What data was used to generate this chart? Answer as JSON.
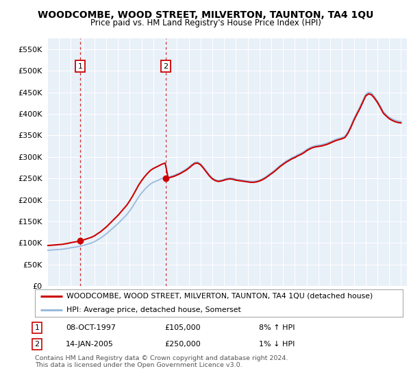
{
  "title": "WOODCOMBE, WOOD STREET, MILVERTON, TAUNTON, TA4 1QU",
  "subtitle": "Price paid vs. HM Land Registry's House Price Index (HPI)",
  "sale1_date": "08-OCT-1997",
  "sale1_price": 105000,
  "sale1_hpi": "8% ↑ HPI",
  "sale2_date": "14-JAN-2005",
  "sale2_price": 250000,
  "sale2_hpi": "1% ↓ HPI",
  "legend_line1": "WOODCOMBE, WOOD STREET, MILVERTON, TAUNTON, TA4 1QU (detached house)",
  "legend_line2": "HPI: Average price, detached house, Somerset",
  "footer": "Contains HM Land Registry data © Crown copyright and database right 2024.\nThis data is licensed under the Open Government Licence v3.0.",
  "sale_color": "#cc0000",
  "hpi_color": "#99bbdd",
  "plot_bg": "#e8f0f8",
  "ylim": [
    0,
    575000
  ],
  "yticks": [
    0,
    50000,
    100000,
    150000,
    200000,
    250000,
    300000,
    350000,
    400000,
    450000,
    500000,
    550000
  ],
  "sale1_x": 1997.78,
  "sale2_x": 2005.04,
  "xmin": 1995.0,
  "xmax": 2025.5,
  "hpi_years": [
    1995.0,
    1995.25,
    1995.5,
    1995.75,
    1996.0,
    1996.25,
    1996.5,
    1996.75,
    1997.0,
    1997.25,
    1997.5,
    1997.75,
    1998.0,
    1998.25,
    1998.5,
    1998.75,
    1999.0,
    1999.25,
    1999.5,
    1999.75,
    2000.0,
    2000.25,
    2000.5,
    2000.75,
    2001.0,
    2001.25,
    2001.5,
    2001.75,
    2002.0,
    2002.25,
    2002.5,
    2002.75,
    2003.0,
    2003.25,
    2003.5,
    2003.75,
    2004.0,
    2004.25,
    2004.5,
    2004.75,
    2005.0,
    2005.25,
    2005.5,
    2005.75,
    2006.0,
    2006.25,
    2006.5,
    2006.75,
    2007.0,
    2007.25,
    2007.5,
    2007.75,
    2008.0,
    2008.25,
    2008.5,
    2008.75,
    2009.0,
    2009.25,
    2009.5,
    2009.75,
    2010.0,
    2010.25,
    2010.5,
    2010.75,
    2011.0,
    2011.25,
    2011.5,
    2011.75,
    2012.0,
    2012.25,
    2012.5,
    2012.75,
    2013.0,
    2013.25,
    2013.5,
    2013.75,
    2014.0,
    2014.25,
    2014.5,
    2014.75,
    2015.0,
    2015.25,
    2015.5,
    2015.75,
    2016.0,
    2016.25,
    2016.5,
    2016.75,
    2017.0,
    2017.25,
    2017.5,
    2017.75,
    2018.0,
    2018.25,
    2018.5,
    2018.75,
    2019.0,
    2019.25,
    2019.5,
    2019.75,
    2020.0,
    2020.25,
    2020.5,
    2020.75,
    2021.0,
    2021.25,
    2021.5,
    2021.75,
    2022.0,
    2022.25,
    2022.5,
    2022.75,
    2023.0,
    2023.25,
    2023.5,
    2023.75,
    2024.0,
    2024.25,
    2024.5,
    2024.75,
    2025.0
  ],
  "hpi_vals": [
    83000,
    83500,
    84000,
    84500,
    85000,
    85500,
    86500,
    87500,
    89000,
    90000,
    91000,
    92500,
    94000,
    96000,
    98000,
    100000,
    103000,
    107000,
    111000,
    116000,
    121000,
    127000,
    133000,
    139000,
    145000,
    152000,
    159000,
    166000,
    175000,
    185000,
    196000,
    207000,
    216000,
    224000,
    231000,
    237000,
    241000,
    244000,
    247000,
    250000,
    252000,
    253000,
    255000,
    257000,
    260000,
    263000,
    267000,
    271000,
    276000,
    282000,
    287000,
    288000,
    284000,
    276000,
    267000,
    258000,
    251000,
    247000,
    245000,
    246000,
    248000,
    250000,
    251000,
    250000,
    248000,
    247000,
    246000,
    245000,
    244000,
    243000,
    243000,
    244000,
    246000,
    249000,
    253000,
    258000,
    263000,
    268000,
    274000,
    280000,
    285000,
    290000,
    294000,
    298000,
    301000,
    305000,
    308000,
    312000,
    317000,
    321000,
    324000,
    326000,
    327000,
    328000,
    330000,
    332000,
    335000,
    338000,
    341000,
    343000,
    345000,
    348000,
    358000,
    372000,
    388000,
    402000,
    415000,
    430000,
    445000,
    450000,
    448000,
    440000,
    430000,
    418000,
    405000,
    398000,
    392000,
    388000,
    385000,
    383000,
    382000
  ]
}
